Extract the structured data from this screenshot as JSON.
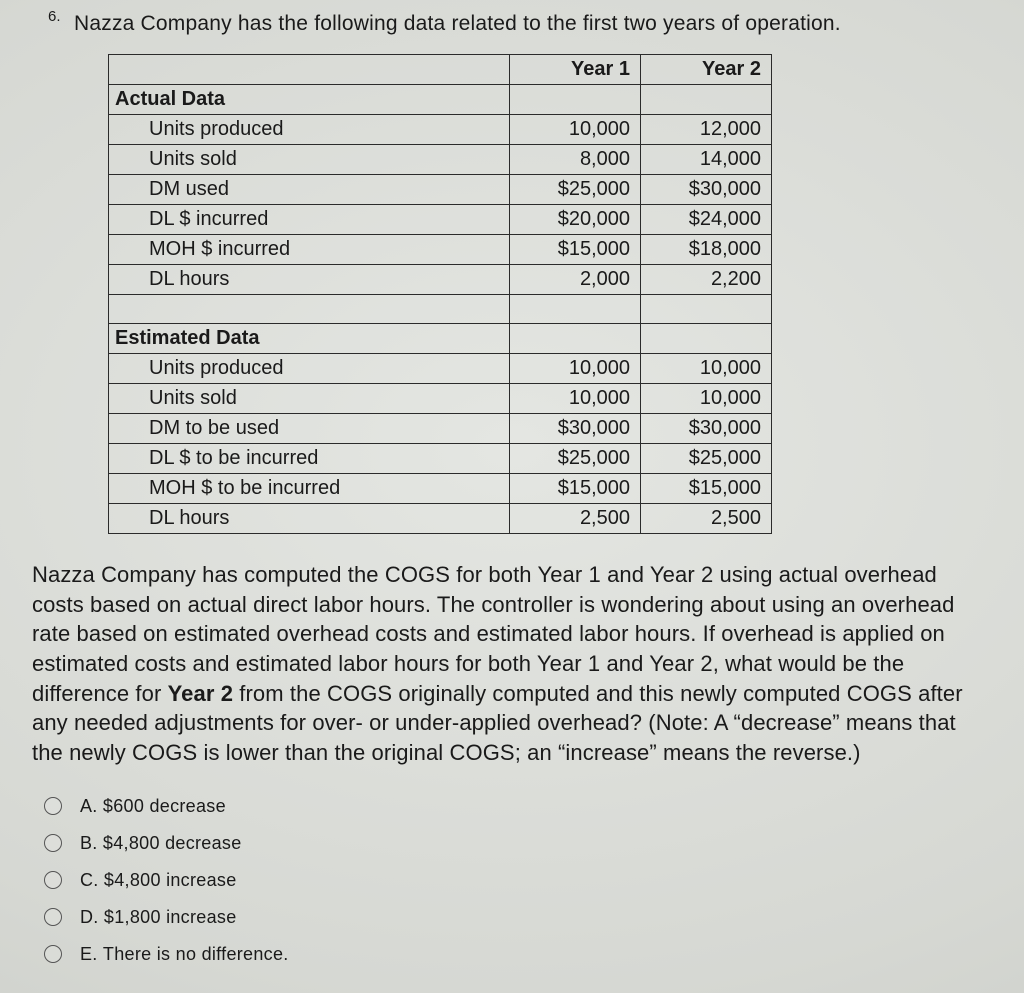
{
  "question_number": "6.",
  "stem_top": "Nazza Company has the following data related to the first two years of operation.",
  "table": {
    "col_headers": [
      "Year 1",
      "Year 2"
    ],
    "sections": [
      {
        "title": "Actual Data",
        "rows": [
          {
            "label": "Units produced",
            "y1": "10,000",
            "y2": "12,000"
          },
          {
            "label": "Units sold",
            "y1": "8,000",
            "y2": "14,000"
          },
          {
            "label": "DM used",
            "y1": "$25,000",
            "y2": "$30,000"
          },
          {
            "label": "DL $ incurred",
            "y1": "$20,000",
            "y2": "$24,000"
          },
          {
            "label": "MOH $ incurred",
            "y1": "$15,000",
            "y2": "$18,000"
          },
          {
            "label": "DL hours",
            "y1": "2,000",
            "y2": "2,200"
          }
        ]
      },
      {
        "title": "Estimated Data",
        "rows": [
          {
            "label": "Units produced",
            "y1": "10,000",
            "y2": "10,000"
          },
          {
            "label": "Units sold",
            "y1": "10,000",
            "y2": "10,000"
          },
          {
            "label": "DM to be  used",
            "y1": "$30,000",
            "y2": "$30,000"
          },
          {
            "label": "DL $ to be incurred",
            "y1": "$25,000",
            "y2": "$25,000"
          },
          {
            "label": "MOH $ to be incurred",
            "y1": "$15,000",
            "y2": "$15,000"
          },
          {
            "label": "DL hours",
            "y1": "2,500",
            "y2": "2,500"
          }
        ]
      }
    ]
  },
  "body_pre": "Nazza Company has computed the COGS for both Year 1 and Year 2 using actual overhead costs based on actual direct labor hours. The controller is wondering about using an overhead rate based on estimated overhead costs and estimated labor hours. If overhead is applied on estimated costs and estimated labor hours for both Year 1 and Year 2, what would be the difference for ",
  "body_bold": "Year 2",
  "body_post": " from the COGS originally computed and this newly computed COGS after any needed adjustments for over- or under-applied overhead? (Note: A “decrease” means that the newly COGS is lower than the original COGS; an “increase” means the reverse.)",
  "options": [
    {
      "letter": "A.",
      "text": "$600 decrease"
    },
    {
      "letter": "B.",
      "text": "$4,800 decrease"
    },
    {
      "letter": "C.",
      "text": "$4,800 increase"
    },
    {
      "letter": "D.",
      "text": "$1,800 increase"
    },
    {
      "letter": "E.",
      "text": "There is no difference."
    }
  ],
  "colors": {
    "page_bg": "#d2d4cf",
    "text": "#1a1a1a",
    "border": "#2b2b2b"
  },
  "fonts": {
    "family": "Arial",
    "stem_size_pt": 16,
    "table_size_pt": 15,
    "body_size_pt": 17,
    "option_size_pt": 14
  }
}
